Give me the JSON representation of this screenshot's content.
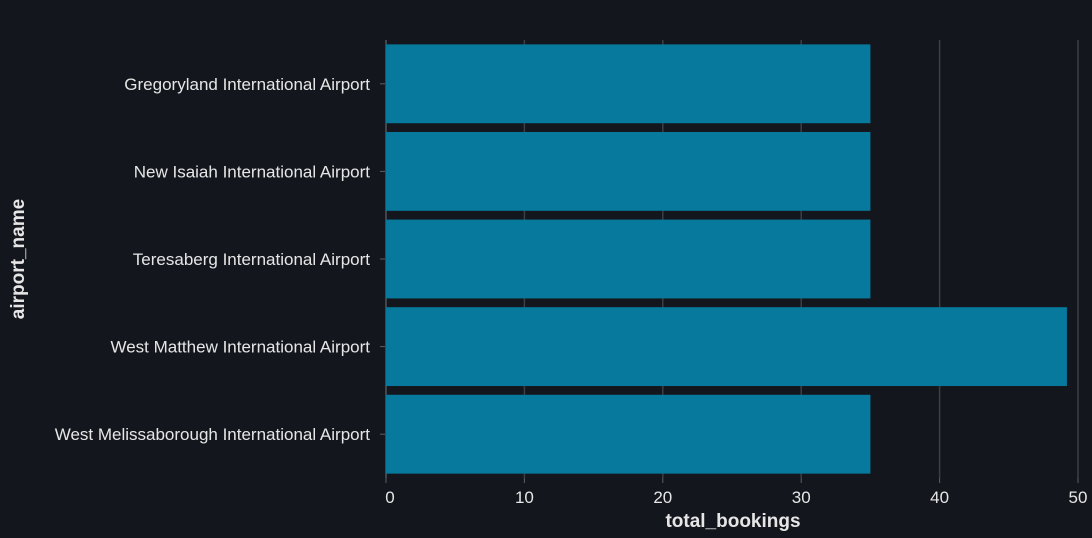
{
  "chart_data": {
    "type": "bar",
    "orientation": "horizontal",
    "categories": [
      "Gregoryland International Airport",
      "New Isaiah International Airport",
      "Teresaberg International Airport",
      "West Matthew International Airport",
      "West Melissaborough International Airport"
    ],
    "values": [
      35,
      35,
      35,
      49.2,
      35
    ],
    "xlabel": "total_bookings",
    "ylabel": "airport_name",
    "xlim": [
      0,
      50
    ],
    "xticks": [
      "0",
      "10",
      "20",
      "30",
      "40",
      "50"
    ],
    "grid": true,
    "colors": {
      "background": "#13171d",
      "bar": "#06799c",
      "grid": "#3a3f46",
      "text": "#e6e6e6"
    }
  }
}
